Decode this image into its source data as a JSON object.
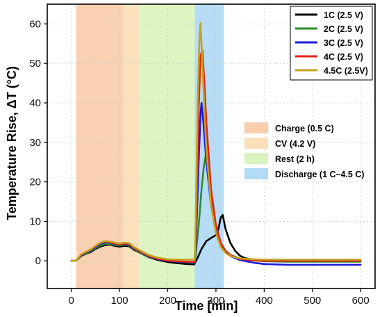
{
  "chart_data": {
    "type": "line",
    "xlabel": "Time [min]",
    "ylabel": "Temperature Rise, ΔT (°C)",
    "xlim": [
      -50,
      630
    ],
    "ylim": [
      -7,
      65
    ],
    "xticks": [
      0,
      100,
      200,
      300,
      400,
      500,
      600
    ],
    "yticks": [
      0,
      10,
      20,
      30,
      40,
      50,
      60
    ],
    "grid": true,
    "phases": [
      {
        "name": "Charge (0.5 C)",
        "x0": 10,
        "x1": 107,
        "color": "#f7c9a6"
      },
      {
        "name": "CV (4.2 V)",
        "x0": 107,
        "x1": 140,
        "color": "#f9dcb2"
      },
      {
        "name": "Rest (2 h)",
        "x0": 140,
        "x1": 256,
        "color": "#d6f3b8"
      },
      {
        "name": "Discharge (1 C–4.5 C)",
        "x0": 256,
        "x1": 316,
        "color": "#a9d6f5"
      }
    ],
    "phase_legend_position": "center-right",
    "legend_position": "top-right",
    "series": [
      {
        "name": "1C (2.5 V)",
        "color": "#000000",
        "x": [
          0,
          10,
          20,
          30,
          40,
          50,
          60,
          70,
          80,
          90,
          100,
          110,
          120,
          130,
          140,
          160,
          180,
          200,
          220,
          240,
          255,
          262,
          270,
          280,
          290,
          300,
          305,
          310,
          314,
          320,
          330,
          340,
          350,
          360,
          380,
          400,
          450,
          500,
          550,
          600
        ],
        "y": [
          0,
          0,
          1.2,
          1.8,
          2.2,
          3.0,
          3.6,
          4.0,
          4.1,
          3.8,
          3.6,
          3.8,
          3.7,
          2.8,
          2.2,
          1.0,
          0.2,
          -0.3,
          -0.6,
          -0.8,
          -0.9,
          0.8,
          3.0,
          5.0,
          5.8,
          6.5,
          8.0,
          11.0,
          11.6,
          8.0,
          4.5,
          2.5,
          1.3,
          0.7,
          0.2,
          0,
          -0.1,
          -0.1,
          -0.1,
          -0.1
        ]
      },
      {
        "name": "2C (2.5 V)",
        "color": "#2e8b2e",
        "x": [
          0,
          10,
          20,
          30,
          40,
          50,
          60,
          70,
          80,
          90,
          100,
          110,
          120,
          130,
          140,
          160,
          180,
          200,
          220,
          240,
          256,
          260,
          265,
          270,
          275,
          280,
          285,
          290,
          300,
          310,
          320,
          330,
          350,
          380,
          400,
          450,
          500,
          550,
          600
        ],
        "y": [
          0,
          0,
          1.3,
          1.9,
          2.4,
          3.2,
          3.9,
          4.3,
          4.3,
          4.0,
          3.9,
          4.1,
          4.0,
          3.0,
          2.3,
          1.1,
          0.4,
          0.0,
          -0.2,
          -0.4,
          -0.5,
          4.0,
          10.0,
          18.0,
          24.0,
          27.5,
          22.0,
          15.0,
          8.0,
          4.5,
          2.5,
          1.5,
          0.6,
          0.1,
          -0.1,
          -0.2,
          -0.2,
          -0.2,
          -0.2
        ]
      },
      {
        "name": "3C (2.5 V)",
        "color": "#1a1ad6",
        "x": [
          0,
          10,
          20,
          30,
          40,
          50,
          60,
          70,
          80,
          90,
          100,
          110,
          120,
          130,
          140,
          160,
          180,
          200,
          220,
          240,
          256,
          260,
          264,
          268,
          270,
          274,
          280,
          290,
          300,
          310,
          320,
          330,
          350,
          380,
          400,
          450,
          500,
          550,
          600
        ],
        "y": [
          0,
          0,
          1.4,
          2.1,
          2.6,
          3.5,
          4.3,
          4.7,
          4.6,
          4.3,
          4.1,
          4.3,
          4.2,
          3.2,
          2.5,
          1.2,
          0.4,
          0.0,
          -0.2,
          -0.3,
          -0.4,
          10.0,
          25.0,
          37.0,
          40.0,
          35.0,
          25.0,
          14.0,
          7.5,
          4.0,
          2.2,
          1.2,
          0.2,
          -0.5,
          -0.8,
          -1.0,
          -1.0,
          -1.0,
          -1.0
        ]
      },
      {
        "name": "4C (2.5 V)",
        "color": "#e0231b",
        "x": [
          0,
          10,
          20,
          30,
          40,
          50,
          60,
          70,
          80,
          90,
          100,
          110,
          120,
          130,
          140,
          160,
          180,
          200,
          220,
          240,
          256,
          260,
          264,
          268,
          272,
          276,
          280,
          290,
          300,
          310,
          320,
          330,
          350,
          380,
          400,
          450,
          500,
          550,
          600
        ],
        "y": [
          0,
          0,
          1.5,
          2.2,
          2.8,
          3.7,
          4.5,
          4.9,
          4.7,
          4.4,
          4.2,
          4.4,
          4.3,
          3.3,
          2.6,
          1.3,
          0.5,
          0.1,
          -0.1,
          -0.2,
          -0.3,
          15.0,
          38.0,
          52.0,
          53.3,
          45.0,
          35.0,
          18.0,
          9.0,
          4.5,
          2.5,
          1.4,
          0.5,
          0.1,
          0.0,
          0.0,
          0.0,
          0.0,
          0.0
        ]
      },
      {
        "name": "4.5C (2.5V)",
        "color": "#c3a21b",
        "x": [
          0,
          10,
          20,
          30,
          40,
          50,
          60,
          70,
          80,
          90,
          100,
          110,
          120,
          130,
          140,
          160,
          180,
          200,
          220,
          240,
          256,
          258,
          262,
          266,
          268,
          272,
          276,
          280,
          290,
          300,
          310,
          320,
          330,
          350,
          380,
          400,
          450,
          500,
          550,
          600
        ],
        "y": [
          0,
          0,
          1.6,
          2.3,
          2.9,
          3.8,
          4.6,
          5.0,
          4.9,
          4.6,
          4.4,
          4.6,
          4.5,
          3.5,
          2.8,
          1.5,
          0.8,
          0.4,
          0.3,
          0.3,
          0.3,
          10.0,
          40.0,
          57.0,
          60.2,
          50.0,
          38.0,
          28.0,
          14.0,
          7.0,
          3.5,
          2.0,
          1.2,
          0.6,
          0.4,
          0.3,
          0.3,
          0.3,
          0.3,
          0.3
        ]
      }
    ]
  }
}
